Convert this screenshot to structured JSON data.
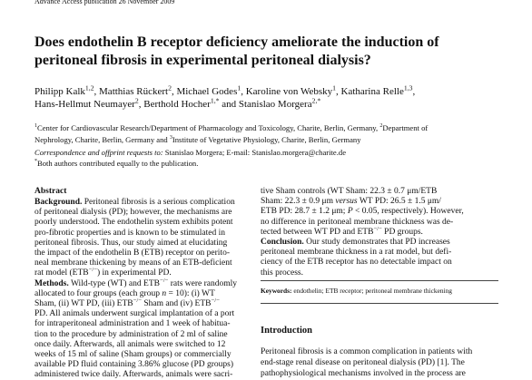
{
  "header": [
    [
      "Advance Access publication 26 November 2009"
    ]
  ],
  "title": [
    [
      "Does endothelin B receptor deficiency ameliorate the induction of"
    ],
    [
      "peritoneal fibrosis in experimental peritoneal dialysis?"
    ]
  ],
  "authors": [
    [
      "Philipp Kalk",
      {
        "t": "1,2",
        "s": "sup"
      },
      ", Matthias Rückert",
      {
        "t": "2",
        "s": "sup"
      },
      ", Michael Godes",
      {
        "t": "1",
        "s": "sup"
      },
      ", Karoline von Websky",
      {
        "t": "1",
        "s": "sup"
      },
      ", Katharina Relle",
      {
        "t": "1,3",
        "s": "sup"
      },
      ","
    ],
    [
      "Hans-Hellmut Neumayer",
      {
        "t": "2",
        "s": "sup"
      },
      ", Berthold Hocher",
      {
        "t": "1,*",
        "s": "sup"
      },
      " and Stanislao Morgera",
      {
        "t": "2,*",
        "s": "sup"
      }
    ]
  ],
  "affiliations": [
    [
      {
        "t": "1",
        "s": "sup"
      },
      "Center for Cardiovascular Research/Department of Pharmacology and Toxicology, Charite, Berlin, Germany, ",
      {
        "t": "2",
        "s": "sup"
      },
      "Department of"
    ],
    [
      "Nephrology, Charite, Berlin, Germany and ",
      {
        "t": "3",
        "s": "sup"
      },
      "Institute of Vegetative Physiology, Charite, Berlin, Germany"
    ]
  ],
  "correspondence": [
    [
      {
        "t": "Correspondence and offprint requests to:",
        "s": "i"
      },
      " Stanislao Morgera; E-mail: Stanislao.morgera@charite.de"
    ],
    [
      {
        "t": "*",
        "s": "sup"
      },
      "Both authors contributed equally to the publication."
    ]
  ],
  "abstract_heading": [
    [
      {
        "t": "Abstract",
        "s": "b"
      }
    ]
  ],
  "abstract_left": [
    [
      {
        "t": "Background.",
        "s": "b"
      },
      " Peritoneal fibrosis is a serious complication"
    ],
    [
      "of peritoneal dialysis (PD); however, the mechanisms are"
    ],
    [
      "poorly understood. The endothelin system exhibits potent"
    ],
    [
      "pro-fibrotic properties and is known to be stimulated in"
    ],
    [
      "peritoneal fibrosis. Thus, our study aimed at elucidating"
    ],
    [
      "the impact of the endothelin B (ETB) receptor on perito-"
    ],
    [
      "neal membrane thickening by means of an ETB-deficient"
    ],
    [
      "rat model (ETB",
      {
        "t": "−/−",
        "s": "sup"
      },
      ") in experimental PD."
    ],
    [
      {
        "t": "Methods.",
        "s": "b"
      },
      " Wild-type (WT) and ETB",
      {
        "t": "−/−",
        "s": "sup"
      },
      " rats were randomly"
    ],
    [
      "allocated to four groups (each group ",
      {
        "t": "n",
        "s": "i"
      },
      " = 10): (i) WT"
    ],
    [
      "Sham, (ii) WT PD, (iii) ETB",
      {
        "t": "−/−",
        "s": "sup"
      },
      " Sham and (iv) ETB",
      {
        "t": "−/−",
        "s": "sup"
      }
    ],
    [
      "PD. All animals underwent surgical implantation of a port"
    ],
    [
      "for intraperitoneal administration and 1 week of habitua-"
    ],
    [
      "tion to the procedure by administration of 2 ml of saline"
    ],
    [
      "once daily. Afterwards, all animals were switched to 12"
    ],
    [
      "weeks of 15 ml of saline (Sham groups) or commercially"
    ],
    [
      "available PD fluid containing 3.86% glucose (PD groups)"
    ],
    [
      "administered twice daily. Afterwards, animals were sacri-"
    ]
  ],
  "abstract_right": [
    [
      "tive Sham controls (WT Sham: 22.3 ± 0.7 μm/ETB"
    ],
    [
      "Sham: 22.3 ± 0.9 μm ",
      {
        "t": "versus",
        "s": "i"
      },
      " WT PD: 26.5 ± 1.5 μm/"
    ],
    [
      "ETB PD: 28.7 ± 1.2 μm; ",
      {
        "t": "P",
        "s": "i"
      },
      " < 0.05, respectively). However,"
    ],
    [
      "no difference in peritoneal membrane thickness was de-"
    ],
    [
      "tected between WT PD and ETB",
      {
        "t": "−/−",
        "s": "sup"
      },
      " PD groups."
    ],
    [
      {
        "t": "Conclusion.",
        "s": "b"
      },
      " Our study demonstrates that PD increases"
    ],
    [
      "peritoneal membrane thickness in a rat model, but defi-"
    ],
    [
      "ciency of the ETB receptor has no detectable impact on"
    ],
    [
      "this process."
    ]
  ],
  "keywords": [
    [
      {
        "t": "Keywords:",
        "s": "b"
      },
      " endothelin; ETB receptor; peritoneal membrane thickening"
    ]
  ],
  "introduction_heading": [
    [
      {
        "t": "Introduction",
        "s": "b"
      }
    ]
  ],
  "introduction": [
    [
      "Peritoneal fibrosis is a common complication in patients with"
    ],
    [
      "end-stage renal disease on peritoneal dialysis (PD) [1]. The"
    ],
    [
      "pathophysiological mechanisms involved in the process are"
    ]
  ]
}
